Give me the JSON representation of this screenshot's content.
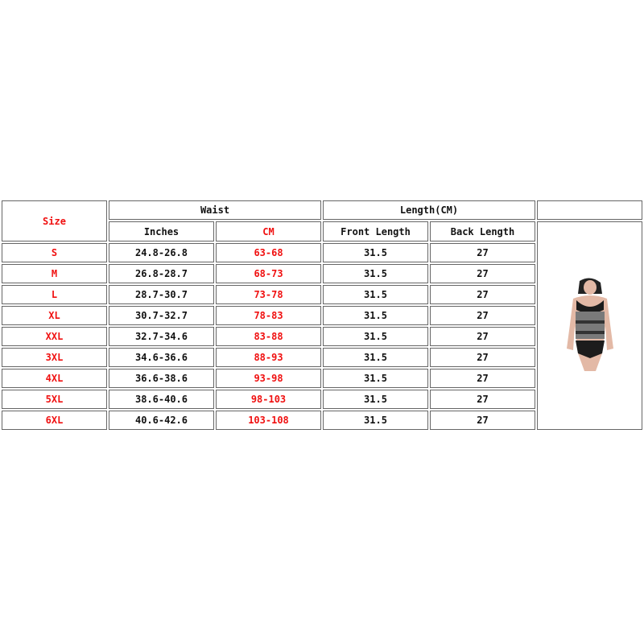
{
  "headers": {
    "size": "Size",
    "waist": "Waist",
    "length": "Length(CM)",
    "inches": "Inches",
    "cm": "CM",
    "front_length": "Front Length",
    "back_length": "Back Length"
  },
  "colors": {
    "accent": "#f01010",
    "border": "#666666"
  },
  "rows": [
    {
      "size": "S",
      "inches": "24.8-26.8",
      "cm": "63-68",
      "front": "31.5",
      "back": "27"
    },
    {
      "size": "M",
      "inches": "26.8-28.7",
      "cm": "68-73",
      "front": "31.5",
      "back": "27"
    },
    {
      "size": "L",
      "inches": "28.7-30.7",
      "cm": "73-78",
      "front": "31.5",
      "back": "27"
    },
    {
      "size": "XL",
      "inches": "30.7-32.7",
      "cm": "78-83",
      "front": "31.5",
      "back": "27"
    },
    {
      "size": "XXL",
      "inches": "32.7-34.6",
      "cm": "83-88",
      "front": "31.5",
      "back": "27"
    },
    {
      "size": "3XL",
      "inches": "34.6-36.6",
      "cm": "88-93",
      "front": "31.5",
      "back": "27"
    },
    {
      "size": "4XL",
      "inches": "36.6-38.6",
      "cm": "93-98",
      "front": "31.5",
      "back": "27"
    },
    {
      "size": "5XL",
      "inches": "38.6-40.6",
      "cm": "98-103",
      "front": "31.5",
      "back": "27"
    },
    {
      "size": "6XL",
      "inches": "40.6-42.6",
      "cm": "103-108",
      "front": "31.5",
      "back": "27"
    }
  ]
}
